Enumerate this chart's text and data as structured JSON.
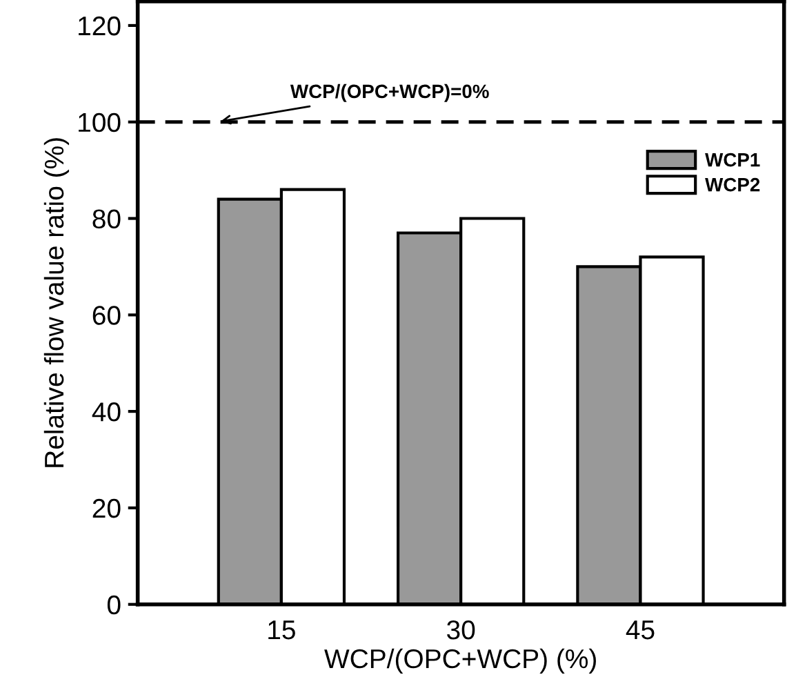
{
  "chart_data": {
    "type": "bar",
    "xlabel": "WCP/(OPC+WCP) (%)",
    "ylabel": "Relative flow value ratio (%)",
    "categories": [
      "15",
      "30",
      "45"
    ],
    "series": [
      {
        "name": "WCP1",
        "color": "#999999",
        "values": [
          84,
          77,
          70
        ]
      },
      {
        "name": "WCP2",
        "color": "#ffffff",
        "values": [
          86,
          80,
          72
        ]
      }
    ],
    "ylim": [
      0,
      125
    ],
    "yticks": [
      0,
      20,
      40,
      60,
      80,
      100,
      120
    ],
    "ref_lines": [
      {
        "axis": "y",
        "value": 100,
        "line_style": "dashed"
      }
    ],
    "annotations": [
      {
        "text": "WCP/(OPC+WCP)=0%",
        "y": 100
      }
    ],
    "grid": false,
    "legend": "top right"
  }
}
